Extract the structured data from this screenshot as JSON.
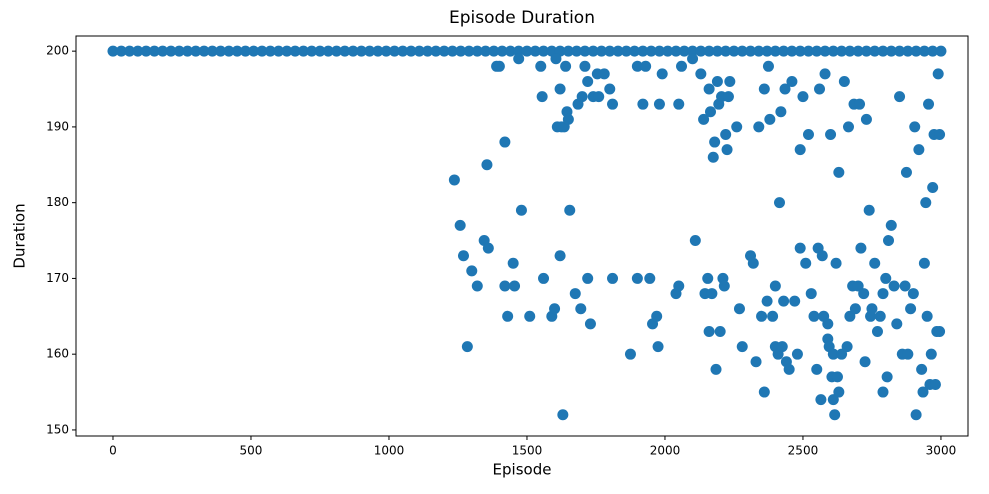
{
  "chart_data": {
    "type": "scatter",
    "title": "Episode Duration",
    "x_label": "Episode",
    "y_label": "Duration",
    "color": "#1f77b4",
    "xlim": [
      -134,
      3098
    ],
    "ylim": [
      149.2,
      202
    ],
    "xticks": [
      0,
      500,
      1000,
      1500,
      2000,
      2500,
      3000
    ],
    "yticks": [
      150,
      160,
      170,
      180,
      190,
      200
    ],
    "x": [
      0,
      30,
      60,
      90,
      120,
      150,
      180,
      210,
      240,
      270,
      300,
      330,
      360,
      390,
      420,
      450,
      480,
      510,
      540,
      570,
      600,
      630,
      660,
      690,
      720,
      750,
      780,
      810,
      840,
      870,
      900,
      930,
      960,
      990,
      1020,
      1050,
      1080,
      1110,
      1140,
      1170,
      1200,
      1230,
      1260,
      1290,
      1320,
      1350,
      1380,
      1410,
      1440,
      1470,
      1500,
      1530,
      1560,
      1590,
      1620,
      1650,
      1680,
      1710,
      1740,
      1770,
      1800,
      1830,
      1860,
      1890,
      1920,
      1950,
      1980,
      2010,
      2040,
      2070,
      2100,
      2130,
      2160,
      2190,
      2220,
      2250,
      2280,
      2310,
      2340,
      2370,
      2400,
      2430,
      2460,
      2490,
      2520,
      2550,
      2580,
      2610,
      2640,
      2670,
      2700,
      2730,
      2760,
      2790,
      2820,
      2850,
      2880,
      2910,
      2940,
      2970,
      3000,
      1237,
      1258,
      1270,
      1284,
      1300,
      1320,
      1345,
      1355,
      1360,
      1390,
      1400,
      1420,
      1420,
      1430,
      1450,
      1455,
      1470,
      1480,
      1510,
      1550,
      1555,
      1560,
      1590,
      1600,
      1605,
      1610,
      1620,
      1620,
      1625,
      1630,
      1635,
      1640,
      1645,
      1650,
      1655,
      1675,
      1685,
      1695,
      1700,
      1710,
      1720,
      1730,
      1720,
      1740,
      1755,
      1760,
      1780,
      1800,
      1810,
      1810,
      1875,
      1900,
      1900,
      1920,
      1930,
      1945,
      1955,
      1970,
      1975,
      1980,
      1990,
      2040,
      2050,
      2050,
      2060,
      2100,
      2110,
      2130,
      2140,
      2145,
      2155,
      2160,
      2160,
      2165,
      2170,
      2175,
      2180,
      2185,
      2190,
      2195,
      2200,
      2205,
      2210,
      2215,
      2220,
      2225,
      2230,
      2235,
      2260,
      2270,
      2280,
      2310,
      2320,
      2330,
      2340,
      2350,
      2360,
      2360,
      2370,
      2375,
      2380,
      2390,
      2400,
      2400,
      2410,
      2415,
      2420,
      2425,
      2430,
      2435,
      2440,
      2450,
      2460,
      2470,
      2480,
      2490,
      2490,
      2500,
      2510,
      2520,
      2530,
      2540,
      2550,
      2555,
      2560,
      2565,
      2570,
      2575,
      2580,
      2590,
      2590,
      2595,
      2600,
      2605,
      2610,
      2610,
      2615,
      2620,
      2625,
      2630,
      2630,
      2640,
      2650,
      2660,
      2665,
      2670,
      2680,
      2685,
      2690,
      2700,
      2705,
      2710,
      2720,
      2725,
      2730,
      2740,
      2745,
      2750,
      2760,
      2770,
      2780,
      2790,
      2790,
      2800,
      2805,
      2810,
      2820,
      2830,
      2840,
      2850,
      2860,
      2870,
      2875,
      2880,
      2890,
      2900,
      2905,
      2910,
      2920,
      2930,
      2935,
      2940,
      2945,
      2950,
      2955,
      2960,
      2965,
      2970,
      2975,
      2980,
      2985,
      2990,
      2995,
      2995
    ],
    "values": [
      200,
      200,
      200,
      200,
      200,
      200,
      200,
      200,
      200,
      200,
      200,
      200,
      200,
      200,
      200,
      200,
      200,
      200,
      200,
      200,
      200,
      200,
      200,
      200,
      200,
      200,
      200,
      200,
      200,
      200,
      200,
      200,
      200,
      200,
      200,
      200,
      200,
      200,
      200,
      200,
      200,
      200,
      200,
      200,
      200,
      200,
      200,
      200,
      200,
      200,
      200,
      200,
      200,
      200,
      200,
      200,
      200,
      200,
      200,
      200,
      200,
      200,
      200,
      200,
      200,
      200,
      200,
      200,
      200,
      200,
      200,
      200,
      200,
      200,
      200,
      200,
      200,
      200,
      200,
      200,
      200,
      200,
      200,
      200,
      200,
      200,
      200,
      200,
      200,
      200,
      200,
      200,
      200,
      200,
      200,
      200,
      200,
      200,
      200,
      200,
      200,
      183,
      177,
      173,
      161,
      171,
      169,
      175,
      185,
      174,
      198,
      198,
      188,
      169,
      165,
      172,
      169,
      199,
      179,
      165,
      198,
      194,
      170,
      165,
      166,
      199,
      190,
      173,
      195,
      190,
      152,
      190,
      198,
      192,
      191,
      179,
      168,
      193,
      166,
      194,
      198,
      196,
      164,
      170,
      194,
      197,
      194,
      197,
      195,
      193,
      170,
      160,
      198,
      170,
      193,
      198,
      170,
      164,
      165,
      161,
      193,
      197,
      168,
      169,
      193,
      198,
      199,
      175,
      197,
      191,
      168,
      170,
      163,
      195,
      192,
      168,
      186,
      188,
      158,
      196,
      193,
      163,
      194,
      170,
      169,
      189,
      187,
      194,
      196,
      190,
      166,
      161,
      173,
      172,
      159,
      190,
      165,
      155,
      195,
      167,
      198,
      191,
      165,
      169,
      161,
      160,
      180,
      192,
      161,
      167,
      195,
      159,
      158,
      196,
      167,
      160,
      187,
      174,
      194,
      172,
      189,
      168,
      165,
      158,
      174,
      195,
      154,
      173,
      165,
      197,
      164,
      162,
      161,
      189,
      157,
      154,
      160,
      152,
      172,
      157,
      155,
      184,
      160,
      196,
      161,
      190,
      165,
      169,
      193,
      166,
      169,
      193,
      174,
      168,
      159,
      191,
      179,
      165,
      166,
      172,
      163,
      165,
      168,
      155,
      170,
      157,
      175,
      177,
      169,
      164,
      194,
      160,
      169,
      184,
      160,
      166,
      168,
      190,
      152,
      187,
      158,
      155,
      172,
      180,
      165,
      193,
      156,
      160,
      182,
      189,
      156,
      163,
      197,
      163,
      189
    ]
  }
}
